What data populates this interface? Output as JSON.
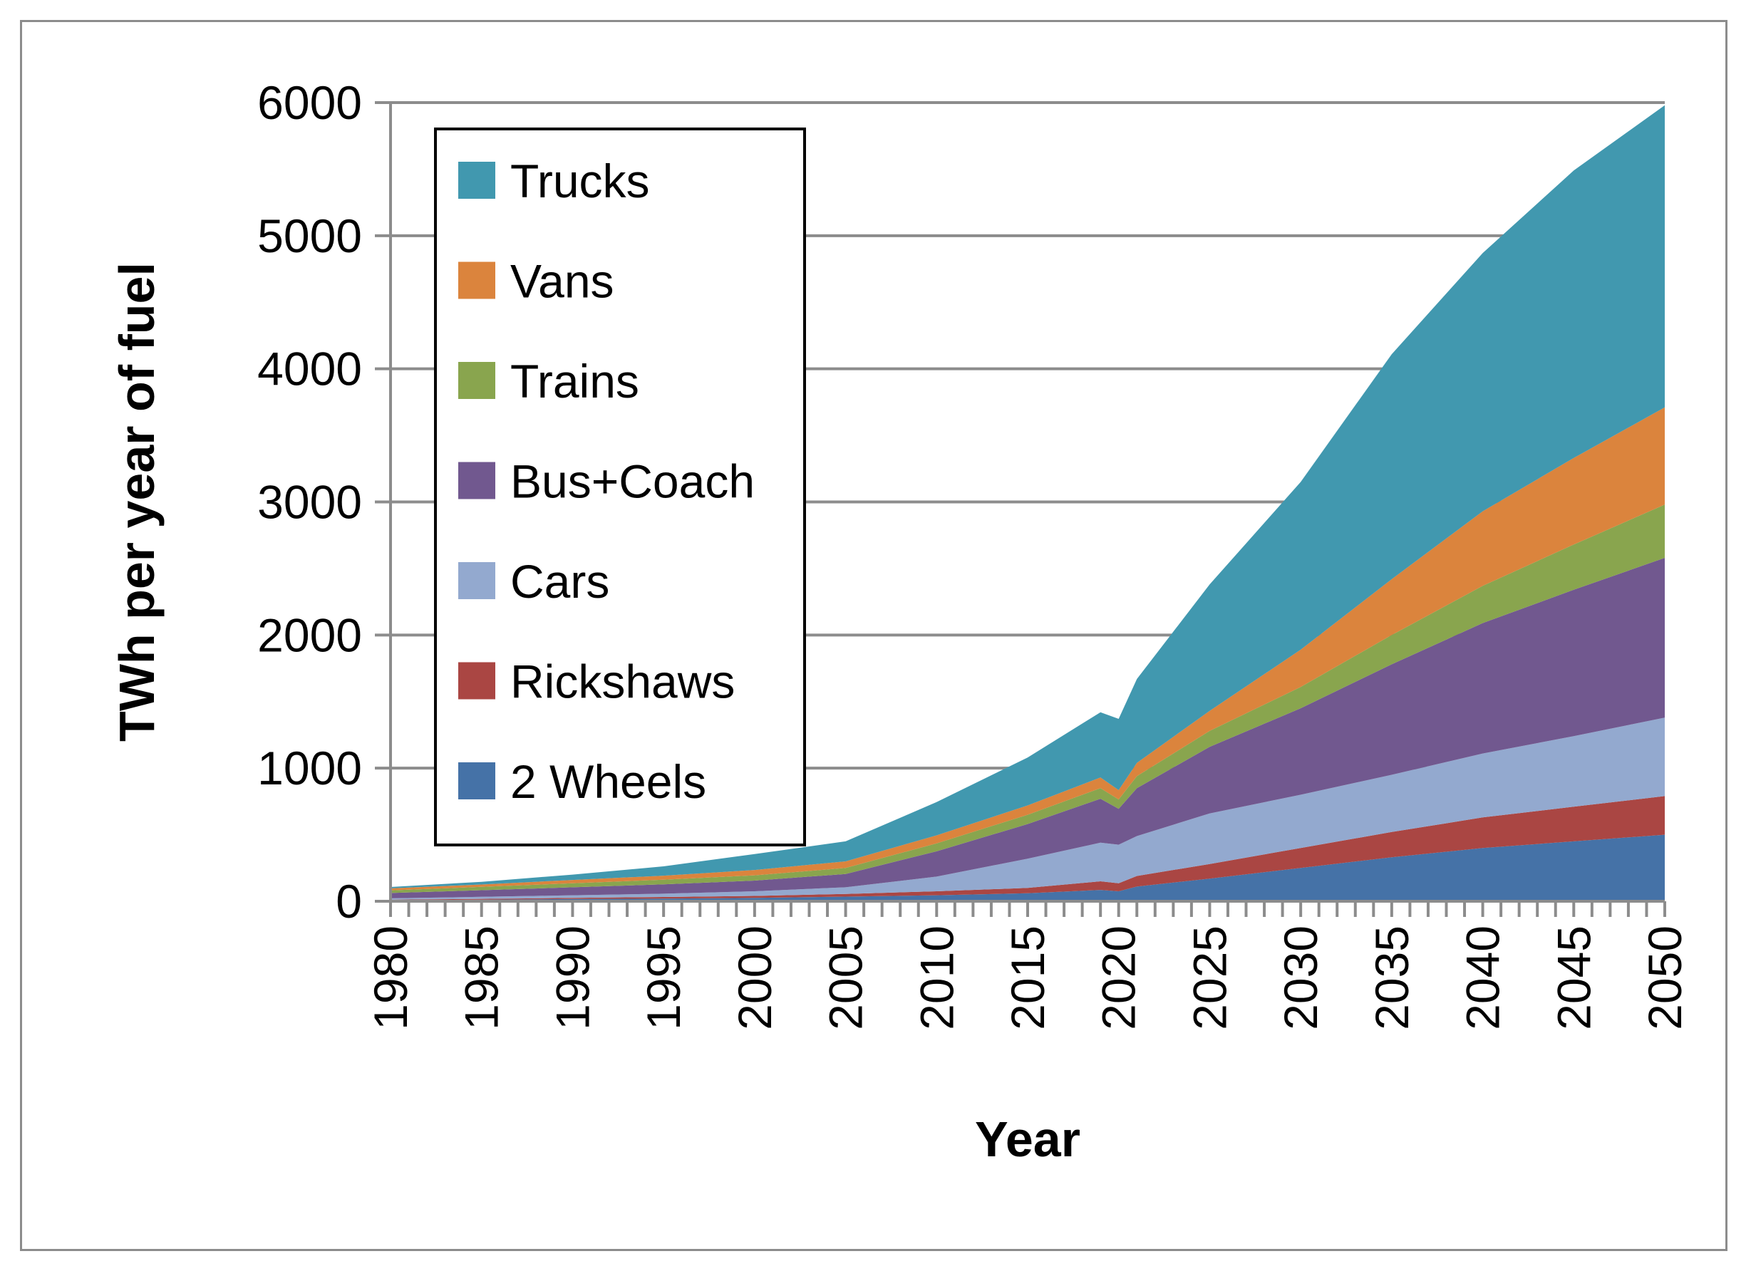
{
  "chart_data": {
    "type": "area",
    "stacked": true,
    "title": "",
    "xlabel": "Year",
    "ylabel": "TWh per year of fuel",
    "xlim": [
      1980,
      2050
    ],
    "ylim": [
      0,
      6000
    ],
    "yticks": [
      0,
      1000,
      2000,
      3000,
      4000,
      5000,
      6000
    ],
    "xticks": [
      1980,
      1985,
      1990,
      1995,
      2000,
      2005,
      2010,
      2015,
      2020,
      2025,
      2030,
      2035,
      2040,
      2045,
      2050
    ],
    "grid": "horizontal",
    "legend_position": "top-left",
    "legend_order": [
      "Trucks",
      "Vans",
      "Trains",
      "Bus+Coach",
      "Cars",
      "Rickshaws",
      "2 Wheels"
    ],
    "x": [
      1980,
      1985,
      1990,
      1995,
      2000,
      2005,
      2010,
      2015,
      2019,
      2020,
      2021,
      2025,
      2030,
      2035,
      2040,
      2045,
      2050
    ],
    "series": [
      {
        "name": "2 Wheels",
        "color": "#4572a7",
        "values": [
          8,
          12,
          17,
          20,
          25,
          35,
          45,
          60,
          85,
          75,
          110,
          170,
          250,
          330,
          400,
          450,
          500
        ]
      },
      {
        "name": "Rickshaws",
        "color": "#aa4643",
        "values": [
          4,
          6,
          8,
          12,
          15,
          20,
          30,
          40,
          65,
          60,
          80,
          110,
          150,
          190,
          230,
          260,
          290
        ]
      },
      {
        "name": "Cars",
        "color": "#93a9cf",
        "values": [
          10,
          15,
          20,
          25,
          35,
          50,
          110,
          220,
          290,
          290,
          300,
          380,
          400,
          430,
          480,
          530,
          590
        ]
      },
      {
        "name": "Bus+Coach",
        "color": "#71588f",
        "values": [
          40,
          50,
          60,
          70,
          80,
          100,
          190,
          260,
          330,
          270,
          360,
          500,
          650,
          830,
          980,
          1100,
          1200
        ]
      },
      {
        "name": "Trains",
        "color": "#89a54e",
        "values": [
          20,
          25,
          30,
          35,
          40,
          45,
          60,
          70,
          80,
          70,
          90,
          120,
          160,
          220,
          280,
          340,
          400
        ]
      },
      {
        "name": "Vans",
        "color": "#db843d",
        "values": [
          15,
          18,
          25,
          30,
          40,
          50,
          60,
          70,
          80,
          70,
          100,
          150,
          280,
          420,
          560,
          650,
          730
        ]
      },
      {
        "name": "Trucks",
        "color": "#4198af",
        "values": [
          10,
          20,
          40,
          70,
          120,
          150,
          250,
          360,
          490,
          535,
          630,
          950,
          1260,
          1690,
          1940,
          2160,
          2270
        ]
      }
    ]
  }
}
